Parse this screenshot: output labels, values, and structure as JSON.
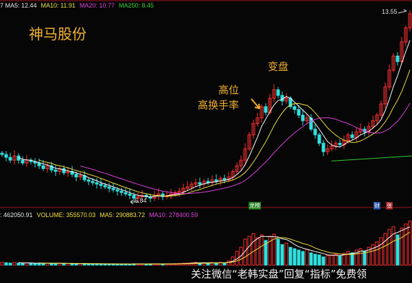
{
  "header": {
    "ma5": "7 MA5: 12.44",
    "ma10": "MA10: 11.91",
    "ma20": "MA20: 10.77",
    "ma250": "MA250: 8.45"
  },
  "volume_header": {
    "prefix": ": 462050.91",
    "volume": "VOLUME: 355570.03",
    "ma5": "MA5: 290883.72",
    "ma10": "MA10: 278400.59"
  },
  "annotations": {
    "stock_name": "神马股份",
    "turn": "变盘",
    "high": "高位",
    "high_turnover": "高换手率",
    "low_label": "6.84",
    "high_label": "13.55"
  },
  "badges": {
    "dragon": "龙榜",
    "cai": "财",
    "zhang": "张"
  },
  "watermark": "关注微信“老韩实盘”回复“指标”免费领",
  "colors": {
    "up": "#ff3030",
    "down": "#30e0e0",
    "ma5": "#ffffff",
    "ma10": "#f0e040",
    "ma20": "#e040e0",
    "ma250": "#30d030",
    "divider": "#a01020"
  },
  "chart_data": {
    "type": "candlestick",
    "ylim": [
      6.84,
      13.55
    ],
    "closes": [
      8.5,
      8.4,
      8.3,
      8.45,
      8.3,
      8.2,
      8.3,
      8.25,
      8.2,
      8.1,
      8.0,
      8.1,
      7.95,
      7.9,
      8.0,
      7.85,
      7.9,
      7.8,
      7.7,
      7.75,
      7.6,
      7.55,
      7.5,
      7.45,
      7.4,
      7.35,
      7.3,
      7.25,
      7.2,
      7.15,
      7.1,
      7.05,
      6.95,
      7.0,
      7.05,
      7.0,
      6.95,
      7.05,
      7.1,
      7.0,
      7.05,
      7.1,
      7.15,
      7.2,
      7.3,
      7.35,
      7.45,
      7.5,
      7.45,
      7.55,
      7.5,
      7.6,
      7.55,
      7.65,
      7.6,
      7.7,
      7.9,
      8.1,
      8.3,
      8.7,
      9.2,
      9.6,
      9.8,
      10.2,
      10.0,
      10.5,
      10.8,
      10.6,
      10.4,
      10.5,
      10.2,
      10.1,
      9.9,
      9.7,
      9.8,
      9.4,
      9.2,
      8.9,
      8.6,
      8.7,
      8.8,
      8.9,
      8.85,
      9.0,
      9.2,
      9.1,
      9.3,
      9.4,
      9.3,
      9.5,
      9.7,
      9.9,
      10.3,
      10.9,
      11.5,
      12.0,
      11.8,
      12.5,
      13.0,
      13.5
    ],
    "volumes": [
      40,
      35,
      30,
      38,
      30,
      28,
      33,
      30,
      25,
      28,
      26,
      30,
      25,
      24,
      28,
      22,
      25,
      22,
      20,
      24,
      20,
      18,
      20,
      18,
      17,
      16,
      15,
      18,
      15,
      14,
      16,
      15,
      20,
      18,
      16,
      15,
      18,
      20,
      17,
      15,
      18,
      20,
      22,
      25,
      28,
      30,
      35,
      40,
      30,
      35,
      30,
      38,
      32,
      40,
      35,
      60,
      120,
      200,
      260,
      380,
      420,
      460,
      400,
      440,
      360,
      420,
      450,
      380,
      300,
      320,
      260,
      240,
      220,
      200,
      230,
      180,
      160,
      150,
      120,
      140,
      150,
      160,
      130,
      170,
      200,
      180,
      220,
      240,
      200,
      260,
      300,
      340,
      400,
      460,
      520,
      560,
      440,
      540,
      600,
      640
    ],
    "ma250": {
      "from_index": 80,
      "values": [
        8.27,
        8.45
      ]
    },
    "volume_ylim": [
      0,
      660
    ]
  }
}
